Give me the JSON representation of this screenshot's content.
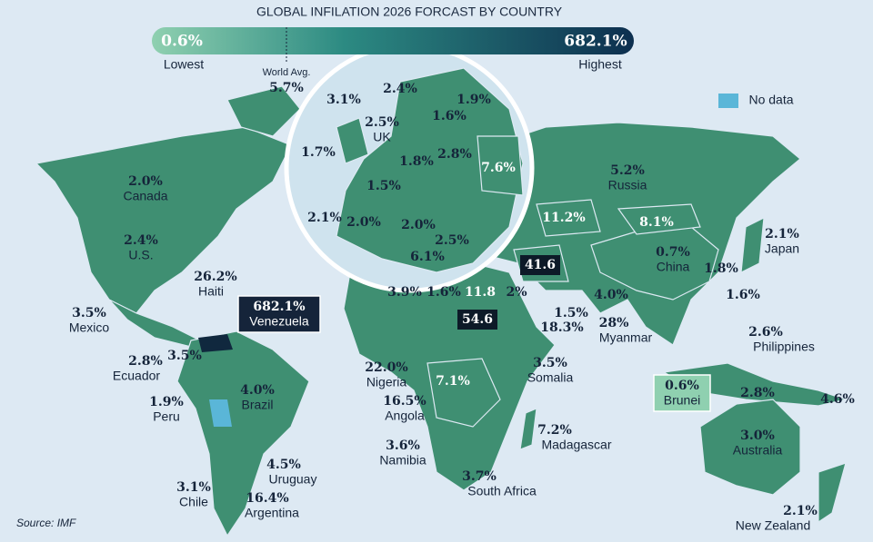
{
  "header": {
    "title": "GLOBAL INFILATION 2026 FORCAST BY COUNTRY"
  },
  "legend": {
    "min": "0.6%",
    "max": "682.1%",
    "min_label": "Lowest",
    "max_label": "Highest",
    "avg_label": "World Avg.",
    "avg_value": "5.7%",
    "no_data": "No data"
  },
  "labels": [
    {
      "value": "2.0%",
      "name": "Canada"
    },
    {
      "value": "2.4%",
      "name": "U.S."
    },
    {
      "value": "3.5%",
      "name": "Mexico"
    },
    {
      "value": "26.2%",
      "name": "Haiti"
    },
    {
      "value": "682.1%",
      "name": "Venezuela"
    },
    {
      "value": "2.8%",
      "name": "Ecuador"
    },
    {
      "value": "3.5%"
    },
    {
      "value": "1.9%",
      "name": "Peru"
    },
    {
      "value": "4.0%",
      "name": "Brazil"
    },
    {
      "value": "4.5%",
      "name": "Uruguay"
    },
    {
      "value": "3.1%",
      "name": "Chile"
    },
    {
      "value": "16.4%",
      "name": "Argentina"
    },
    {
      "value": "3.1%"
    },
    {
      "value": "2.4%"
    },
    {
      "value": "1.9%"
    },
    {
      "value": "1.6%"
    },
    {
      "value": "2.5%",
      "name": "UK"
    },
    {
      "value": "1.7%"
    },
    {
      "value": "1.8%"
    },
    {
      "value": "2.8%"
    },
    {
      "value": "7.6%"
    },
    {
      "value": "1.5%"
    },
    {
      "value": "2.1%"
    },
    {
      "value": "2.0%"
    },
    {
      "value": "2.0%"
    },
    {
      "value": "2.5%"
    },
    {
      "value": "6.1%"
    },
    {
      "value": "5.2%",
      "name": "Russia"
    },
    {
      "value": "11.2%"
    },
    {
      "value": "8.1%"
    },
    {
      "value": "41.6"
    },
    {
      "value": "0.7%",
      "name": "China"
    },
    {
      "value": "2.1%",
      "name": "Japan"
    },
    {
      "value": "1.8%"
    },
    {
      "value": "1.6%"
    },
    {
      "value": "4.0%"
    },
    {
      "value": "28%",
      "name": "Myanmar"
    },
    {
      "value": "2.6%",
      "name": "Philippines"
    },
    {
      "value": "0.6%",
      "name": "Brunei"
    },
    {
      "value": "2.8%"
    },
    {
      "value": "4.6%"
    },
    {
      "value": "3.0%",
      "name": "Australia"
    },
    {
      "value": "2.1%",
      "name": "New Zealand"
    },
    {
      "value": "3.9%"
    },
    {
      "value": "1.6%"
    },
    {
      "value": "11.8"
    },
    {
      "value": "2%"
    },
    {
      "value": "54.6"
    },
    {
      "value": "1.5%"
    },
    {
      "value": "18.3%"
    },
    {
      "value": "22.0%",
      "name": "Nigeria"
    },
    {
      "value": "3.5%",
      "name": "Somalia"
    },
    {
      "value": "7.1%"
    },
    {
      "value": "16.5%",
      "name": "Angola"
    },
    {
      "value": "7.2%",
      "name": "Madagascar"
    },
    {
      "value": "3.6%",
      "name": "Namibia"
    },
    {
      "value": "3.7%",
      "name": "South Africa"
    }
  ],
  "source": "Source: IMF"
}
